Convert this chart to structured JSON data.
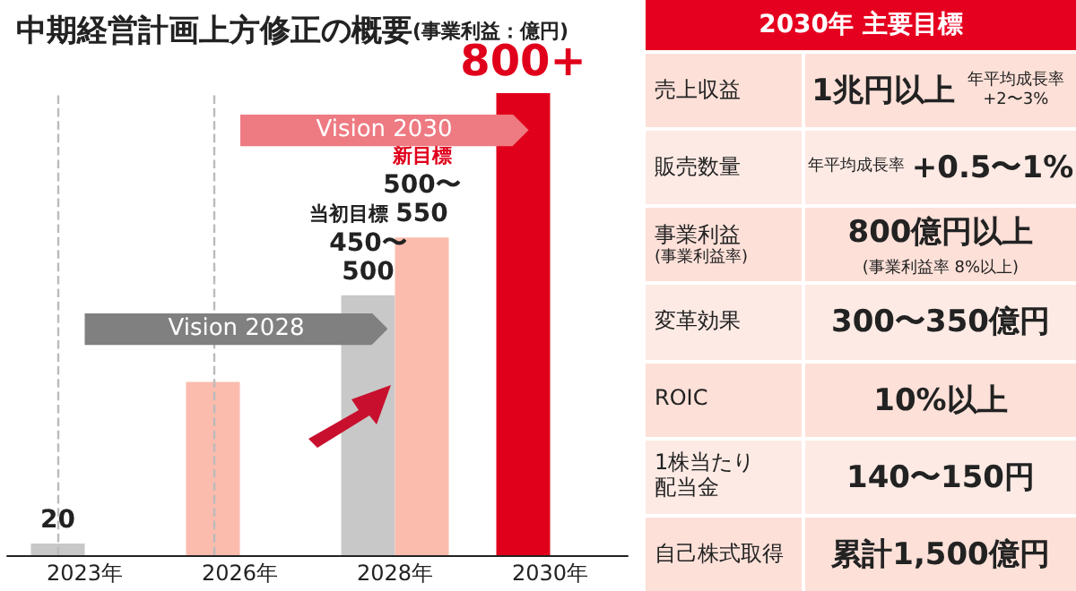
{
  "chart_data": [
    {
      "type": "bar",
      "title": "中期経営計画上方修正の概要",
      "subtitle": "(事業利益：億円)",
      "categories": [
        "2023年",
        "2026年",
        "2028年",
        "2030年"
      ],
      "series": [
        {
          "colors": [
            "#c8c8c8",
            "#fbbcae",
            "#c8c8c8",
            "#e0001b"
          ],
          "values": [
            20,
            300,
            450,
            800
          ],
          "value_labels": [
            "20",
            null,
            "450〜500",
            "800+"
          ]
        },
        {
          "color": "#fbbcae",
          "values": [
            null,
            null,
            550,
            null
          ],
          "value_labels": [
            null,
            null,
            "500〜550",
            null
          ]
        }
      ],
      "ylim": [
        0,
        800
      ],
      "tick_labels": "x",
      "ref_lines": [
        {
          "axis": "x",
          "value": "2023年",
          "color": "#bbbbbb",
          "line_style": "dashed"
        },
        {
          "axis": "x",
          "value": "2026年",
          "color": "#bbbbbb",
          "line_style": "dashed"
        }
      ],
      "annotations": [
        "当初目標",
        "新目標",
        "Vision 2028",
        "Vision 2030"
      ]
    },
    {
      "type": "other",
      "title": "2030年 主要目標",
      "categories": [
        "売上収益",
        "販売数量",
        "事業利益\n(事業利益率)",
        "変革効果",
        "ROIC",
        "1株当たり配当金",
        "自己株式取得"
      ],
      "annotations": [
        "1兆円以上",
        "年平均成長率+2〜3%",
        "年平均成長率",
        "+0.5〜1%",
        "800億円以上",
        "(事業利益率 8%以上)",
        "300〜350億円",
        "10%以上",
        "140〜150円",
        "累計1,500億円"
      ]
    }
  ]
}
